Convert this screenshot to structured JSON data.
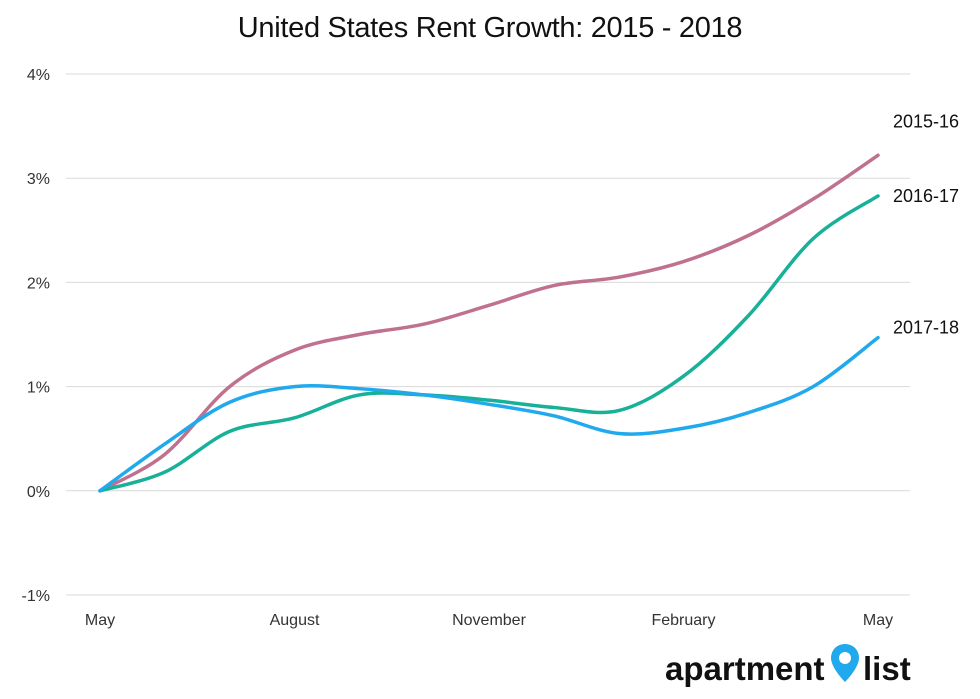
{
  "chart_data": {
    "type": "line",
    "title": "United States Rent Growth: 2015 - 2018",
    "xlabel": "",
    "ylabel": "",
    "x_tick_labels": [
      "May",
      "August",
      "November",
      "February",
      "May"
    ],
    "x_tick_months": [
      0,
      3,
      6,
      9,
      12
    ],
    "y_ticks": [
      -1,
      0,
      1,
      2,
      3,
      4
    ],
    "y_tick_labels": [
      "-1%",
      "0%",
      "1%",
      "2%",
      "3%",
      "4%"
    ],
    "ylim": [
      -1,
      4
    ],
    "xlim": [
      0,
      12
    ],
    "grid": true,
    "series": [
      {
        "name": "2015-16",
        "color": "#c0718f",
        "x": [
          0,
          1,
          2,
          3,
          4,
          5,
          6,
          7,
          8,
          9,
          10,
          11,
          12
        ],
        "values": [
          0.0,
          0.35,
          1.0,
          1.35,
          1.5,
          1.6,
          1.78,
          1.97,
          2.05,
          2.2,
          2.45,
          2.8,
          3.22
        ]
      },
      {
        "name": "2016-17",
        "color": "#17b098",
        "x": [
          0,
          1,
          2,
          3,
          4,
          5,
          6,
          7,
          8,
          9,
          10,
          11,
          12
        ],
        "values": [
          0.0,
          0.18,
          0.57,
          0.7,
          0.92,
          0.92,
          0.87,
          0.8,
          0.77,
          1.1,
          1.68,
          2.42,
          2.83
        ]
      },
      {
        "name": "2017-18",
        "color": "#20a9ec",
        "x": [
          0,
          1,
          2,
          3,
          4,
          5,
          6,
          7,
          8,
          9,
          10,
          11,
          12
        ],
        "values": [
          0.0,
          0.45,
          0.85,
          1.0,
          0.98,
          0.92,
          0.83,
          0.72,
          0.55,
          0.6,
          0.75,
          1.0,
          1.47
        ]
      }
    ]
  },
  "logo": {
    "text_a": "apartment",
    "text_b": "list",
    "pin_color": "#20a9ec"
  }
}
